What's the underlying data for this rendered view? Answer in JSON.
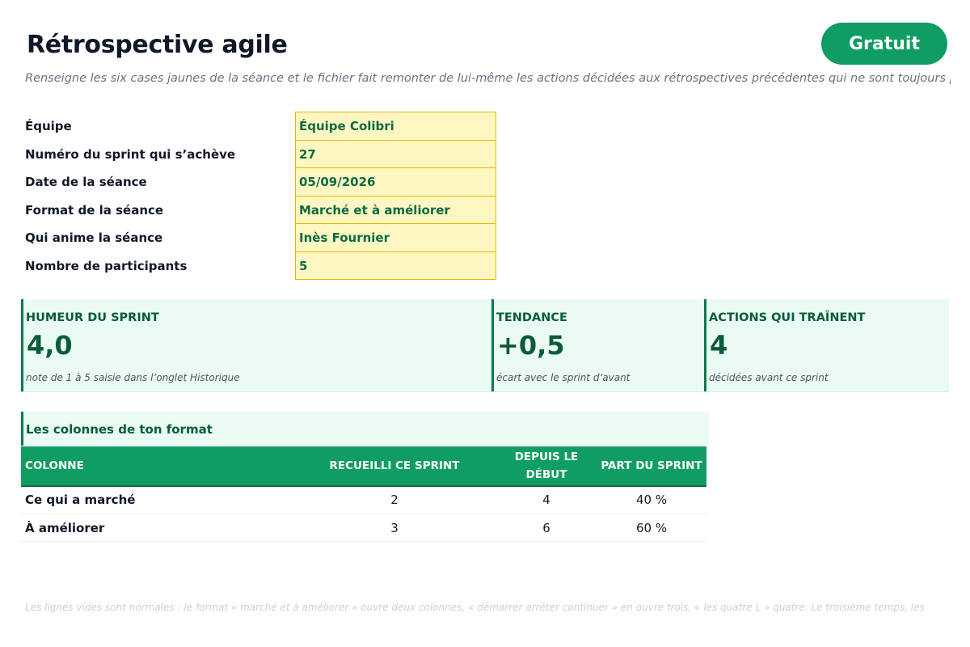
{
  "header": {
    "title": "Rétrospective agile",
    "badge": "Gratuit",
    "subtitle": "Renseigne les six cases jaunes de la séance et le fichier fait remonter de lui-même les actions décidées aux rétrospectives précédentes qui ne sont toujours pa"
  },
  "form": {
    "fields": [
      {
        "label": "Équipe",
        "value": "Équipe Colibri"
      },
      {
        "label": "Numéro du sprint qui s’achève",
        "value": "27"
      },
      {
        "label": "Date de la séance",
        "value": "05/09/2026"
      },
      {
        "label": "Format de la séance",
        "value": "Marché et à améliorer"
      },
      {
        "label": "Qui anime la séance",
        "value": "Inès Fournier"
      },
      {
        "label": "Nombre de participants",
        "value": "5"
      }
    ]
  },
  "kpis": [
    {
      "label": "HUMEUR DU SPRINT",
      "value": "4,0",
      "note": "note de 1 à 5 saisie dans l’onglet Historique"
    },
    {
      "label": "TENDANCE",
      "value": "+0,5",
      "note": "écart avec le sprint d’avant"
    },
    {
      "label": "ACTIONS QUI TRAÎNENT",
      "value": "4",
      "note": "décidées avant ce sprint"
    }
  ],
  "columns_section": {
    "title": "Les colonnes de ton format",
    "headers": {
      "col1": "COLONNE",
      "col2": "RECUEILLI CE SPRINT",
      "col3_line1": "DEPUIS LE",
      "col3_line2": "DÉBUT",
      "col4": "PART DU SPRINT"
    },
    "rows": [
      {
        "name": "Ce qui a marché",
        "sprint": "2",
        "since": "4",
        "share": "40 %"
      },
      {
        "name": "À améliorer",
        "sprint": "3",
        "since": "6",
        "share": "60 %"
      }
    ]
  },
  "footnote": "Les lignes vides sont normales : le format « marché et à améliorer » ouvre deux colonnes, « démarrer arrêter continuer » en ouvre trois, « les quatre L » quatre. Le troisième temps, les",
  "colors": {
    "accent": "#0f9d63",
    "accent_dark": "#0b5c3a",
    "input_fill": "#fff7c2",
    "input_border": "#e6b800",
    "panel_fill": "#e9fbf2"
  }
}
